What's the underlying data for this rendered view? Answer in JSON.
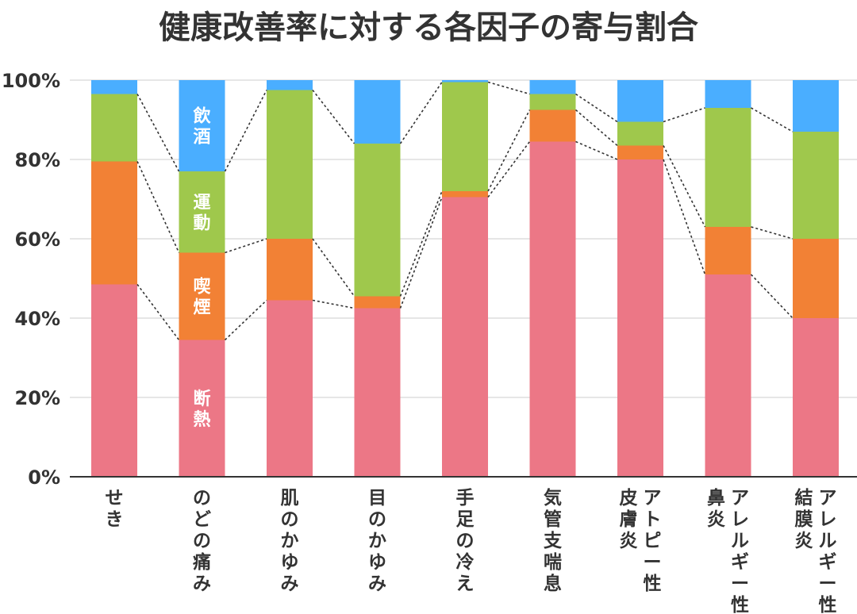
{
  "chart_data": {
    "type": "bar",
    "stacked": true,
    "percent_stacked": true,
    "title": "健康改善率に対する各因子の寄与割合",
    "xlabel": "",
    "ylabel": "",
    "ylim": [
      0,
      100
    ],
    "y_ticks": [
      "0%",
      "20%",
      "40%",
      "60%",
      "80%",
      "100%"
    ],
    "grid": true,
    "legend": "none",
    "connector_lines": true,
    "categories": [
      [
        "せき"
      ],
      [
        "のどの痛み"
      ],
      [
        "肌のかゆみ"
      ],
      [
        "目のかゆみ"
      ],
      [
        "手足の冷え"
      ],
      [
        "気管支喘息"
      ],
      [
        "皮膚炎",
        "アトピー性"
      ],
      [
        "鼻炎",
        "アレルギー性"
      ],
      [
        "結膜炎",
        "アレルギー性"
      ]
    ],
    "series": [
      {
        "name": "断熱",
        "color": "#ec7786",
        "values": [
          48.5,
          34.5,
          44.5,
          42.5,
          70.5,
          84.5,
          80.0,
          51.0,
          40.0
        ]
      },
      {
        "name": "喫煙",
        "color": "#f28135",
        "values": [
          31.0,
          22.0,
          15.5,
          3.0,
          1.5,
          8.0,
          3.5,
          12.0,
          20.0
        ]
      },
      {
        "name": "運動",
        "color": "#9fc84c",
        "values": [
          17.0,
          20.5,
          37.5,
          38.5,
          27.5,
          4.0,
          6.0,
          30.0,
          27.0
        ]
      },
      {
        "name": "飲酒",
        "color": "#4aaeff",
        "values": [
          3.5,
          23.0,
          2.5,
          16.0,
          0.5,
          3.5,
          10.5,
          7.0,
          13.0
        ]
      }
    ],
    "segment_labels_on_category": 1
  }
}
